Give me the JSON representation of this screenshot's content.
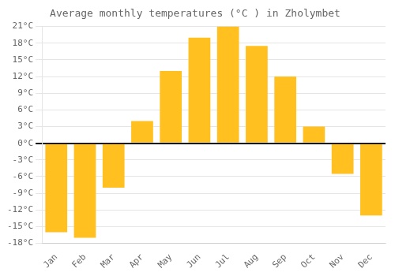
{
  "chart_data": {
    "type": "bar",
    "title": "Average monthly temperatures (°C ) in Zholymbet",
    "categories": [
      "Jan",
      "Feb",
      "Mar",
      "Apr",
      "May",
      "Jun",
      "Jul",
      "Aug",
      "Sep",
      "Oct",
      "Nov",
      "Dec"
    ],
    "values": [
      -16,
      -17,
      -8,
      4,
      13,
      19,
      21,
      17.5,
      12,
      3,
      -5.5,
      -13
    ],
    "color": "#FFC020",
    "ylim": [
      -18,
      21
    ],
    "yticks": [
      {
        "value": -18,
        "label": "-18°C"
      },
      {
        "value": -15,
        "label": "-15°C"
      },
      {
        "value": -12,
        "label": "-12°C"
      },
      {
        "value": -9,
        "label": "-9°C"
      },
      {
        "value": -6,
        "label": "-6°C"
      },
      {
        "value": -3,
        "label": "-3°C"
      },
      {
        "value": 0,
        "label": "0°C"
      },
      {
        "value": 3,
        "label": "3°C"
      },
      {
        "value": 6,
        "label": "6°C"
      },
      {
        "value": 9,
        "label": "9°C"
      },
      {
        "value": 12,
        "label": "12°C"
      },
      {
        "value": 15,
        "label": "15°C"
      },
      {
        "value": 18,
        "label": "18°C"
      },
      {
        "value": 21,
        "label": "21°C"
      }
    ],
    "grid": true
  }
}
